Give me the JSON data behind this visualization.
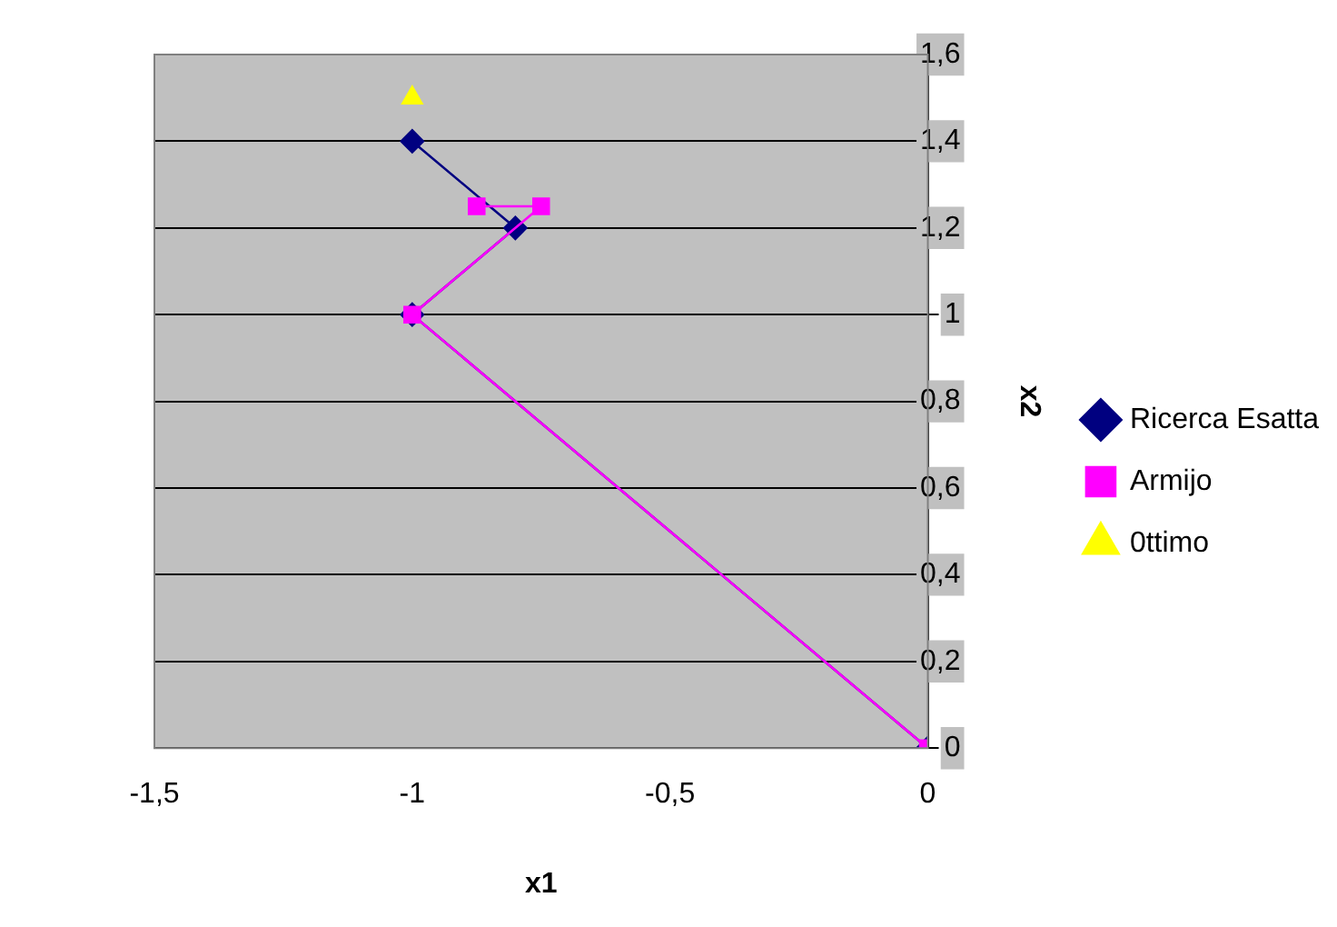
{
  "chart_data": {
    "type": "line",
    "xlabel": "x1",
    "ylabel": "x2",
    "series": [
      {
        "name": "Ricerca Esatta",
        "color": "#000080",
        "marker": "diamond",
        "x": [
          0,
          -1,
          -0.8,
          -1
        ],
        "values": [
          0,
          1,
          1.2,
          1.4
        ]
      },
      {
        "name": "Armijo",
        "color": "#ff00ff",
        "marker": "square",
        "x": [
          0,
          -1,
          -0.75,
          -0.875
        ],
        "values": [
          0,
          1,
          1.25,
          1.25
        ]
      },
      {
        "name": "0ttimo",
        "color": "#ffff00",
        "marker": "triangle",
        "x": [
          -1
        ],
        "values": [
          1.5
        ]
      }
    ],
    "xlim": [
      -1.5,
      0
    ],
    "xticks": [
      {
        "value": -1.5,
        "label": "-1,5"
      },
      -1,
      {
        "value": -0.5,
        "label": "-0,5"
      },
      0
    ],
    "ylim": [
      0,
      1.6
    ],
    "yticks": [
      0,
      {
        "value": 0.2,
        "label": "0,2"
      },
      {
        "value": 0.4,
        "label": "0,4"
      },
      {
        "value": 0.6,
        "label": "0,6"
      },
      {
        "value": 0.8,
        "label": "0,8"
      },
      1,
      {
        "value": 1.2,
        "label": "1,2"
      },
      {
        "value": 1.4,
        "label": "1,4"
      },
      {
        "value": 1.6,
        "label": "1,6"
      }
    ],
    "grid": "y",
    "legend": "right"
  }
}
